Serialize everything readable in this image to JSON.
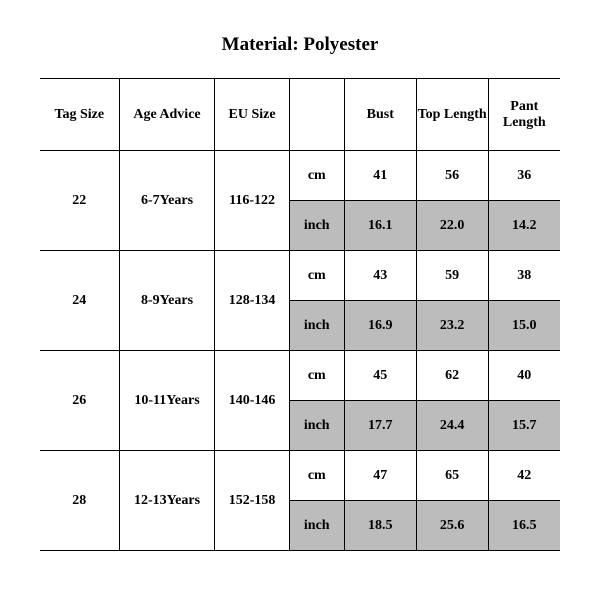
{
  "title": "Material: Polyester",
  "table": {
    "columns": [
      "Tag Size",
      "Age Advice",
      "EU Size",
      "",
      "Bust",
      "Top Length",
      "Pant Length"
    ],
    "unit_cm": "cm",
    "unit_inch": "inch",
    "colors": {
      "shade": "#bcbcbc",
      "border": "#000000",
      "bg": "#ffffff",
      "text": "#000000"
    },
    "rows": [
      {
        "tag": "22",
        "age": "6-7Years",
        "eu": "116-122",
        "cm": [
          "41",
          "56",
          "36"
        ],
        "inch": [
          "16.1",
          "22.0",
          "14.2"
        ]
      },
      {
        "tag": "24",
        "age": "8-9Years",
        "eu": "128-134",
        "cm": [
          "43",
          "59",
          "38"
        ],
        "inch": [
          "16.9",
          "23.2",
          "15.0"
        ]
      },
      {
        "tag": "26",
        "age": "10-11Years",
        "eu": "140-146",
        "cm": [
          "45",
          "62",
          "40"
        ],
        "inch": [
          "17.7",
          "24.4",
          "15.7"
        ]
      },
      {
        "tag": "28",
        "age": "12-13Years",
        "eu": "152-158",
        "cm": [
          "47",
          "65",
          "42"
        ],
        "inch": [
          "18.5",
          "25.6",
          "16.5"
        ]
      }
    ]
  }
}
